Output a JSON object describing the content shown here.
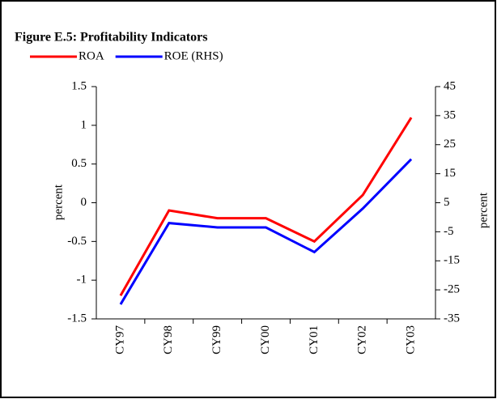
{
  "chart_data": {
    "type": "line",
    "title": "Figure E.5: Profitability Indicators",
    "categories": [
      "CY97",
      "CY98",
      "CY99",
      "CY00",
      "CY01",
      "CY02",
      "CY03"
    ],
    "series": [
      {
        "name": "ROA",
        "color": "#ff0000",
        "values": [
          -1.2,
          -0.1,
          -0.2,
          -0.2,
          -0.5,
          0.1,
          1.1
        ]
      },
      {
        "name": "ROE (RHS)",
        "color": "#0000ff",
        "axis": "y2",
        "values": [
          -30,
          -2,
          -3.5,
          -3.5,
          -12,
          3,
          20
        ]
      }
    ],
    "ylabel": "percent",
    "y2label": "percent",
    "ylim": [
      -1.5,
      1.5
    ],
    "yticks": [
      1.5,
      1,
      0.5,
      0,
      -0.5,
      -1,
      -1.5
    ],
    "y2lim": [
      -35,
      45
    ],
    "y2ticks": [
      45,
      35,
      25,
      15,
      5,
      -5,
      -15,
      -25,
      -35
    ],
    "grid": false,
    "legend": "top-left"
  }
}
